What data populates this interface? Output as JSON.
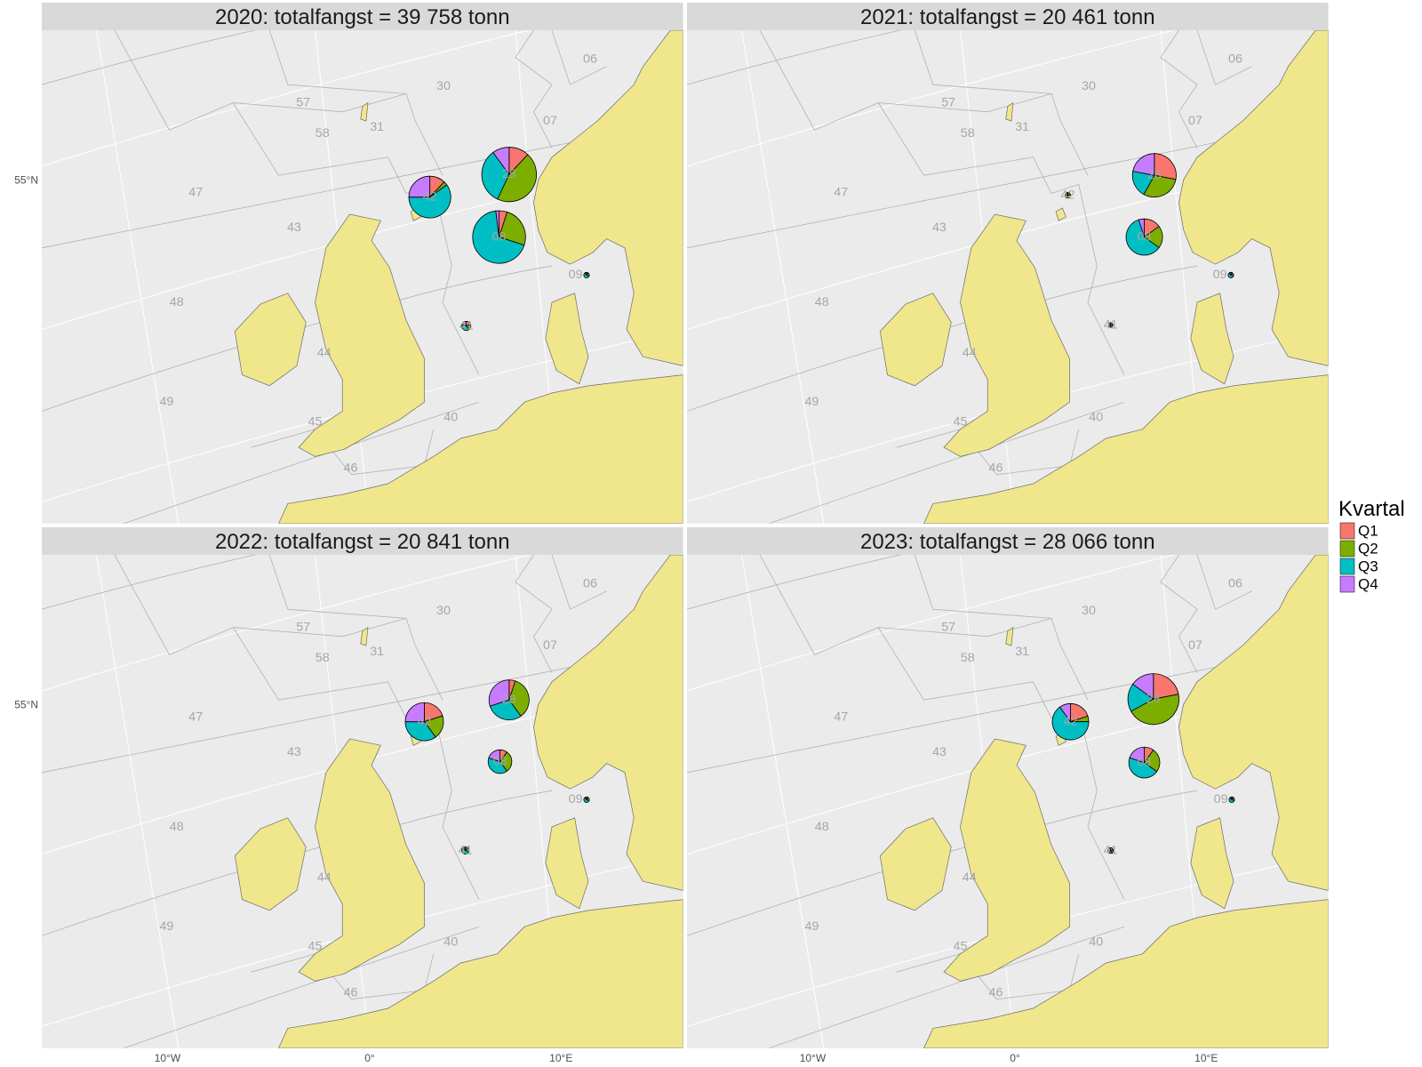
{
  "legend": {
    "title": "Kvartal",
    "items": [
      {
        "label": "Q1",
        "color": "#F8766D"
      },
      {
        "label": "Q2",
        "color": "#7CAE00"
      },
      {
        "label": "Q3",
        "color": "#00BFC4"
      },
      {
        "label": "Q4",
        "color": "#C77CFF"
      }
    ]
  },
  "axes": {
    "y_labels": [
      "55°N"
    ],
    "x_labels": [
      "10°W",
      "0°",
      "10°E"
    ]
  },
  "panels": [
    {
      "title": "2020: totalfangst = 39 758 tonn",
      "area_labels": [
        "06",
        "30",
        "57",
        "07",
        "58",
        "31",
        "47",
        "43",
        "48",
        "44",
        "49",
        "45",
        "40",
        "46"
      ],
      "pies": [
        {
          "area": "42",
          "shares": [
            12,
            3,
            60,
            25
          ]
        },
        {
          "area": "28",
          "shares": [
            12,
            45,
            33,
            10
          ]
        },
        {
          "area": "08",
          "shares": [
            5,
            25,
            68,
            2
          ]
        },
        {
          "area": "41",
          "shares": [
            20,
            20,
            40,
            20
          ]
        },
        {
          "area": "09",
          "shares": [
            10,
            20,
            60,
            10
          ]
        }
      ]
    },
    {
      "title": "2021: totalfangst = 20 461 tonn",
      "area_labels": [
        "06",
        "30",
        "57",
        "07",
        "58",
        "31",
        "47",
        "43",
        "48",
        "44",
        "49",
        "45",
        "40",
        "46"
      ],
      "pies": [
        {
          "area": "42",
          "shares": [
            20,
            50,
            20,
            10
          ]
        },
        {
          "area": "28",
          "shares": [
            28,
            30,
            20,
            22
          ]
        },
        {
          "area": "08",
          "shares": [
            15,
            20,
            60,
            5
          ]
        },
        {
          "area": "41",
          "shares": [
            25,
            25,
            25,
            25
          ]
        },
        {
          "area": "09",
          "shares": [
            10,
            20,
            60,
            10
          ]
        }
      ]
    },
    {
      "title": "2022: totalfangst = 20 841 tonn",
      "area_labels": [
        "06",
        "30",
        "57",
        "07",
        "58",
        "31",
        "47",
        "43",
        "48",
        "44",
        "49",
        "45",
        "40",
        "46"
      ],
      "pies": [
        {
          "area": "42",
          "shares": [
            20,
            20,
            35,
            25
          ]
        },
        {
          "area": "28",
          "shares": [
            5,
            35,
            30,
            30
          ]
        },
        {
          "area": "08",
          "shares": [
            10,
            30,
            40,
            20
          ]
        },
        {
          "area": "41",
          "shares": [
            10,
            20,
            60,
            10
          ]
        },
        {
          "area": "09",
          "shares": [
            10,
            20,
            60,
            10
          ]
        }
      ]
    },
    {
      "title": "2023: totalfangst = 28 066 tonn",
      "area_labels": [
        "06",
        "30",
        "57",
        "07",
        "58",
        "31",
        "47",
        "43",
        "48",
        "44",
        "49",
        "45",
        "40",
        "46"
      ],
      "pies": [
        {
          "area": "42",
          "shares": [
            20,
            5,
            65,
            10
          ]
        },
        {
          "area": "28",
          "shares": [
            22,
            45,
            18,
            15
          ]
        },
        {
          "area": "08",
          "shares": [
            10,
            25,
            45,
            20
          ]
        },
        {
          "area": "41",
          "shares": [
            20,
            20,
            20,
            40
          ]
        },
        {
          "area": "09",
          "shares": [
            10,
            20,
            60,
            10
          ]
        }
      ]
    }
  ]
}
